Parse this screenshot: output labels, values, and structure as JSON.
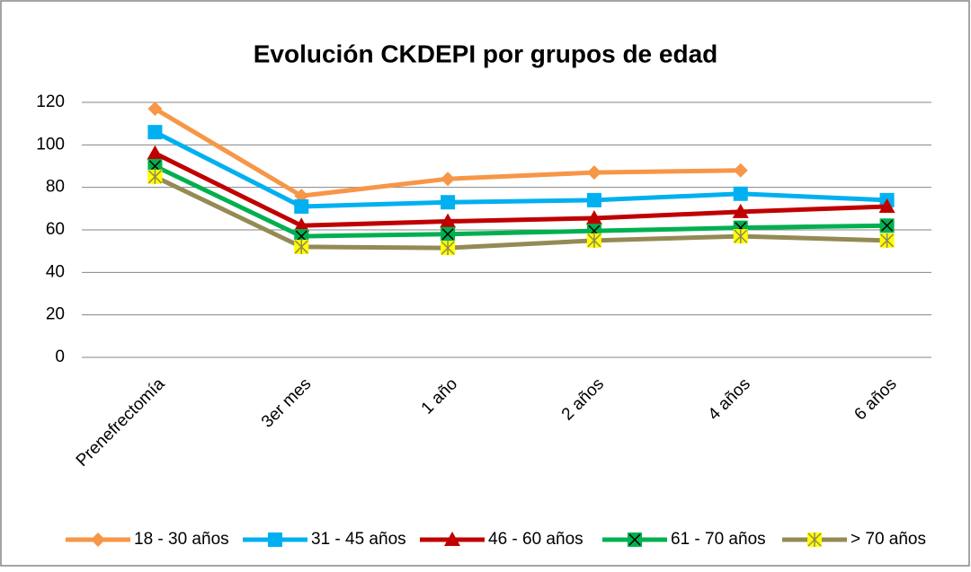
{
  "chart_data": {
    "type": "line",
    "title": "Evolución CKDEPI por grupos de edad",
    "categories": [
      "Prenefrectomía",
      "3er mes",
      "1 año",
      "2 años",
      "4 años",
      "6 años"
    ],
    "series": [
      {
        "name": "18 - 30 años",
        "color": "#f79646",
        "marker": "diamond",
        "values": [
          117,
          76,
          84,
          87,
          88,
          null
        ]
      },
      {
        "name": "31 - 45 años",
        "color": "#00b0f0",
        "marker": "square",
        "values": [
          106,
          71,
          73,
          74,
          77,
          74
        ]
      },
      {
        "name": "46 - 60 años",
        "color": "#c00000",
        "marker": "triangle",
        "values": [
          96,
          62,
          64,
          65.5,
          68.5,
          71
        ]
      },
      {
        "name": "61 - 70 años",
        "color": "#00b050",
        "marker": "x-square",
        "values": [
          90,
          57,
          58,
          59.5,
          61,
          62
        ]
      },
      {
        "name": "> 70 años",
        "color": "#948a54",
        "marker": "star",
        "values": [
          85,
          52,
          51.5,
          55,
          57,
          55
        ]
      }
    ],
    "ylim": [
      0,
      120
    ],
    "yticks": [
      0,
      20,
      40,
      60,
      80,
      100,
      120
    ],
    "grid": true,
    "legend": "bottom"
  }
}
